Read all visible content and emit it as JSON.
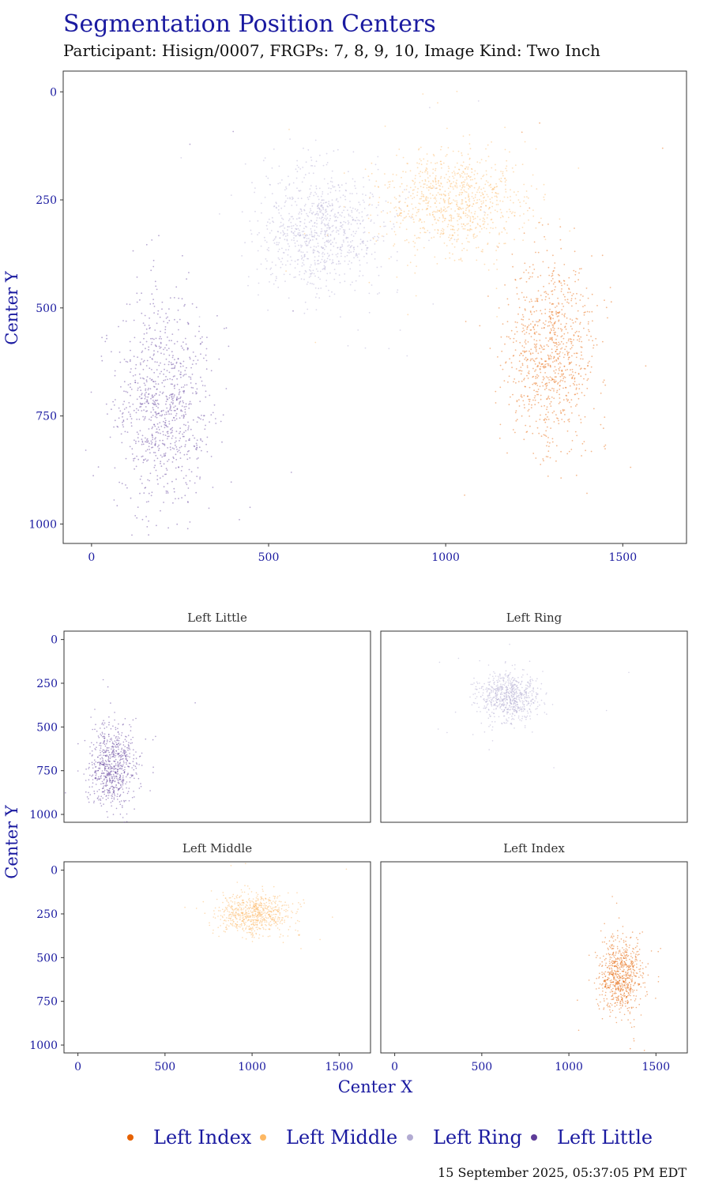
{
  "chart_data": {
    "type": "scatter",
    "title": "Segmentation Position Centers",
    "subtitle": "Participant: Hisign/0007, FRGPs: 7, 8, 9, 10, Image Kind: Two Inch",
    "xlabel": "Center X",
    "ylabel": "Center Y",
    "xlim": [
      -80,
      1680
    ],
    "ylim": [
      1045,
      -48
    ],
    "y_reversed": true,
    "xticks": [
      "0",
      "500",
      "1000",
      "1500"
    ],
    "yticks": [
      "0",
      "250",
      "500",
      "750",
      "1000"
    ],
    "legend_position": "bottom",
    "series": [
      {
        "name": "Left Index",
        "color": "#e66101",
        "center": [
          1300,
          600
        ],
        "sd": [
          60,
          110
        ]
      },
      {
        "name": "Left Middle",
        "color": "#fdb863",
        "center": [
          1020,
          250
        ],
        "sd": [
          100,
          60
        ]
      },
      {
        "name": "Left Ring",
        "color": "#b2abd2",
        "center": [
          650,
          320
        ],
        "sd": [
          85,
          70
        ]
      },
      {
        "name": "Left Little",
        "color": "#5e3c99",
        "center": [
          200,
          720
        ],
        "sd": [
          65,
          120
        ]
      }
    ],
    "facets": [
      "Left Little",
      "Left Ring",
      "Left Middle",
      "Left Index"
    ]
  },
  "timestamp": "15 September 2025, 05:37:05 PM EDT"
}
